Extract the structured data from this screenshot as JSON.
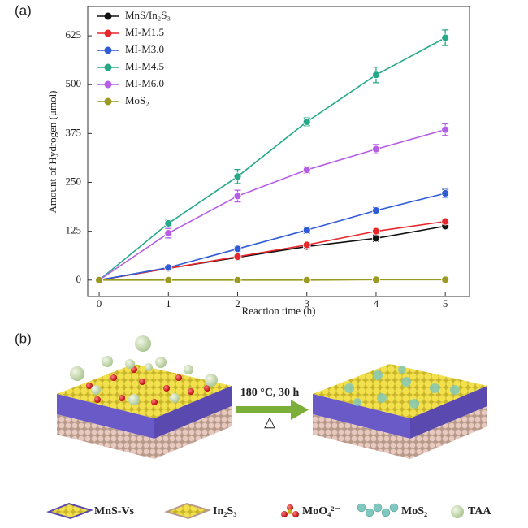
{
  "panel_labels": [
    "(a)",
    "(b)"
  ],
  "chart_data": {
    "type": "line",
    "xlabel": "Reaction time (h)",
    "ylabel": "Amount of Hydrogen (μmol)",
    "x": [
      0,
      1,
      2,
      3,
      4,
      5
    ],
    "xlim": [
      -0.165,
      5.35
    ],
    "xticks": [
      0,
      1,
      2,
      3,
      4,
      5
    ],
    "ylim": [
      -42,
      700
    ],
    "yticks": [
      0,
      125,
      250,
      375,
      500,
      625
    ],
    "legend": "upper left",
    "series": [
      {
        "name": "MnS/In₂S₃",
        "color": "#111111",
        "values": [
          0,
          30,
          58,
          86,
          107,
          138
        ],
        "errors": [
          0,
          3,
          4,
          5,
          8,
          5
        ]
      },
      {
        "name": "MI-M1.5",
        "color": "#e8262b",
        "values": [
          0,
          30,
          60,
          90,
          125,
          150
        ],
        "errors": [
          0,
          3,
          4,
          5,
          6,
          6
        ]
      },
      {
        "name": "MI-M3.0",
        "color": "#2f5bd6",
        "values": [
          0,
          32,
          80,
          128,
          178,
          222
        ],
        "errors": [
          0,
          3,
          6,
          8,
          8,
          10
        ]
      },
      {
        "name": "MI-M4.5",
        "color": "#26a989",
        "values": [
          0,
          145,
          265,
          405,
          525,
          620
        ],
        "errors": [
          0,
          8,
          18,
          10,
          20,
          20
        ]
      },
      {
        "name": "MI-M6.0",
        "color": "#b65ee6",
        "values": [
          0,
          120,
          215,
          282,
          335,
          385
        ],
        "errors": [
          0,
          12,
          15,
          8,
          12,
          15
        ]
      },
      {
        "name": "MoS₂",
        "color": "#9a9a22",
        "values": [
          0,
          0,
          0,
          0,
          1,
          1
        ],
        "errors": [
          0,
          0,
          0,
          0,
          0,
          0
        ]
      }
    ]
  },
  "diagram": {
    "condition": "180 °C, 30 h",
    "heat_symbol": "△",
    "legend": [
      "MnS-Vs",
      "In₂S₃",
      "MoO₄²⁻",
      "MoS₂",
      "TAA"
    ]
  }
}
